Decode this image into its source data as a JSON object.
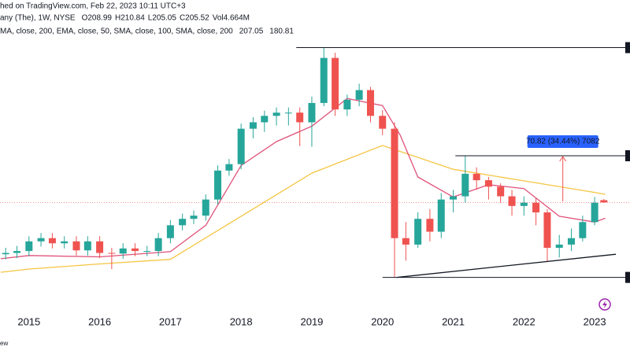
{
  "chart_data": {
    "type": "candlestick",
    "header": "hed on TradingView.com, Feb 22, 2023 10:11 UTC+3",
    "symbol_line": "any (The), 1W, NYSE",
    "ohlc_text": [
      "O208.99",
      "H210.84",
      "L205.05",
      "C205.52",
      "Vol4.664M"
    ],
    "indicator_line": "MA, close, 200, EMA, close, 50, SMA, close, 100, SMA, close, 200",
    "indicator_values": [
      "207.05",
      "180.81"
    ],
    "footer": "ew",
    "xlim": [
      2014.59,
      2023.5
    ],
    "xticks": [
      2015,
      2016,
      2017,
      2018,
      2019,
      2020,
      2021,
      2022,
      2023
    ],
    "ylim": [
      -30,
      520
    ],
    "up_color": "#26a69a",
    "down_color": "#ef5350",
    "x": [
      2014.67,
      2014.83,
      2015,
      2015.17,
      2015.33,
      2015.5,
      2015.67,
      2015.83,
      2016,
      2016.17,
      2016.33,
      2016.5,
      2016.67,
      2016.83,
      2017,
      2017.17,
      2017.33,
      2017.5,
      2017.67,
      2017.83,
      2018,
      2018.17,
      2018.33,
      2018.5,
      2018.67,
      2018.83,
      2019,
      2019.17,
      2019.33,
      2019.5,
      2019.67,
      2019.83,
      2020,
      2020.17,
      2020.33,
      2020.5,
      2020.67,
      2020.83,
      2021,
      2021.17,
      2021.33,
      2021.5,
      2021.67,
      2021.83,
      2022,
      2022.17,
      2022.33,
      2022.5,
      2022.67,
      2022.83,
      2023,
      2023.13
    ],
    "open": [
      125,
      127,
      130,
      145,
      150,
      142,
      145,
      131,
      145,
      127,
      126,
      134,
      130,
      130,
      150,
      170,
      180,
      185,
      210,
      255,
      265,
      320,
      330,
      340,
      345,
      345,
      330,
      360,
      430,
      350,
      365,
      380,
      340,
      320,
      150,
      140,
      180,
      160,
      210,
      215,
      250,
      240,
      230,
      215,
      200,
      205,
      190,
      135,
      140,
      150,
      175,
      208.99
    ],
    "high": [
      135,
      138,
      153,
      158,
      158,
      153,
      153,
      153,
      153,
      135,
      142,
      142,
      138,
      158,
      178,
      188,
      193,
      218,
      263,
      273,
      328,
      338,
      348,
      353,
      353,
      353,
      370,
      446,
      438,
      373,
      390,
      385,
      349,
      330,
      175,
      190,
      195,
      220,
      225,
      278,
      260,
      245,
      235,
      225,
      215,
      212,
      195,
      155,
      165,
      185,
      214,
      210.84
    ],
    "low": [
      117,
      119,
      122,
      137,
      134,
      134,
      123,
      123,
      119,
      102,
      118,
      122,
      122,
      122,
      142,
      162,
      172,
      177,
      202,
      247,
      257,
      305,
      315,
      325,
      325,
      293,
      292,
      355,
      340,
      340,
      355,
      330,
      310,
      89,
      115,
      135,
      145,
      150,
      190,
      205,
      225,
      210,
      205,
      185,
      185,
      170,
      113,
      120,
      130,
      145,
      170,
      205.05
    ],
    "close": [
      127,
      130,
      145,
      150,
      142,
      145,
      131,
      145,
      127,
      126,
      134,
      130,
      130,
      150,
      170,
      180,
      185,
      210,
      255,
      265,
      320,
      330,
      340,
      345,
      345,
      330,
      360,
      430,
      350,
      365,
      380,
      340,
      320,
      150,
      140,
      180,
      160,
      210,
      215,
      250,
      240,
      230,
      215,
      200,
      205,
      190,
      135,
      140,
      150,
      175,
      205,
      205.52
    ],
    "series": [
      {
        "color": "#f5c542",
        "x": [
          2014.6,
          2015,
          2016,
          2017,
          2018,
          2019,
          2020,
          2021,
          2022,
          2023,
          2023.15
        ],
        "values": [
          97,
          102,
          110,
          117,
          184,
          251,
          294,
          257,
          239,
          221,
          218
        ]
      },
      {
        "color": "#e0527a",
        "x": [
          2014.6,
          2015,
          2016,
          2017,
          2017.5,
          2018,
          2018.5,
          2019,
          2019.5,
          2020,
          2020.25,
          2020.5,
          2021,
          2021.5,
          2022,
          2022.5,
          2023,
          2023.15
        ],
        "values": [
          118,
          123,
          121,
          129,
          170,
          263,
          300,
          324,
          367,
          356,
          310,
          245,
          214,
          233,
          227,
          184,
          175,
          181
        ]
      }
    ],
    "levels": [
      {
        "value": 446,
        "from": 2018.78
      },
      {
        "value": 278,
        "from": 2021.03
      },
      {
        "value": 89,
        "from": 2020.0
      }
    ],
    "trendline": {
      "x": [
        2020.2,
        2023.3
      ],
      "values": [
        89,
        125
      ]
    },
    "measure": {
      "x": 2022.55,
      "from": 207,
      "to": 278,
      "label": "70.82 (34.44%) 7082"
    }
  }
}
